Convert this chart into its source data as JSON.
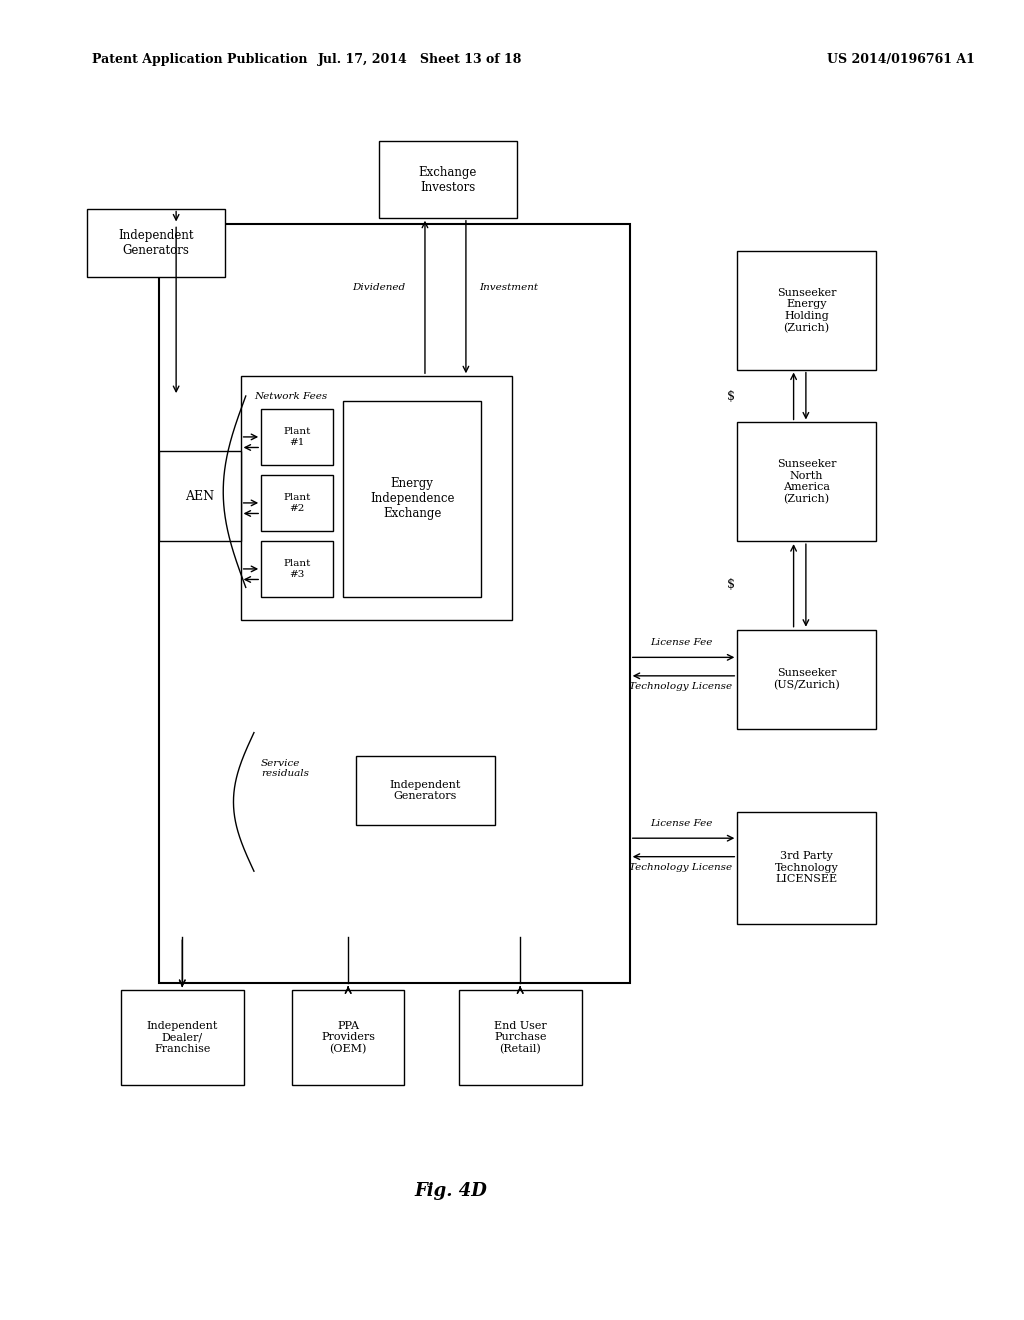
{
  "bg_color": "#ffffff",
  "header_left": "Patent Application Publication",
  "header_mid": "Jul. 17, 2014   Sheet 13 of 18",
  "header_right": "US 2014/0196761 A1",
  "fig_label": "Fig. 4D"
}
